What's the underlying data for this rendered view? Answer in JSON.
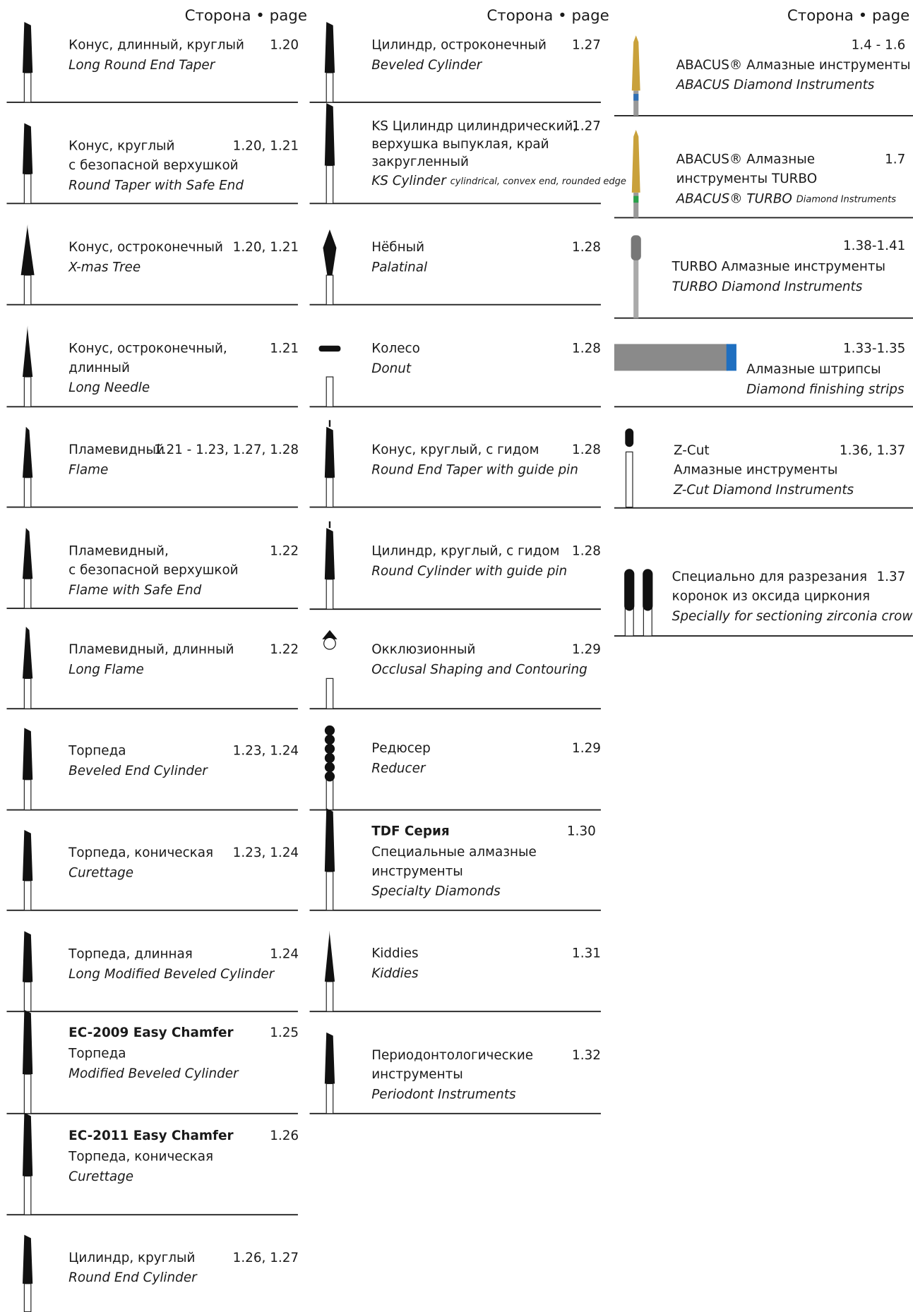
{
  "columns": [
    {
      "header": "Сторона • page",
      "items": [
        {
          "ru": [
            "Конус, длинный, круглый"
          ],
          "en": "Long Round End Taper",
          "page": "1.20"
        },
        {
          "ru": [
            "Конус, круглый",
            "с безопасной верхушкой"
          ],
          "en": "Round Taper with Safe End",
          "page": "1.20, 1.21"
        },
        {
          "ru": [
            "Конус, остроконечный"
          ],
          "en": "X-mas Tree",
          "page": "1.20, 1.21"
        },
        {
          "ru": [
            "Конус, остроконечный,",
            "длинный"
          ],
          "en": "Long Needle",
          "page": "1.21"
        },
        {
          "ru": [
            "Пламевидный"
          ],
          "en": "Flame",
          "page": "1.21 - 1.23, 1.27, 1.28"
        },
        {
          "ru": [
            "Пламевидный,",
            "с безопасной верхушкой"
          ],
          "en": "Flame with Safe End",
          "page": "1.22"
        },
        {
          "ru": [
            "Пламевидный, длинный"
          ],
          "en": "Long Flame",
          "page": "1.22"
        },
        {
          "ru": [
            "Торпеда"
          ],
          "en": "Beveled End Cylinder",
          "page": "1.23, 1.24"
        },
        {
          "ru": [
            "Торпеда, коническая"
          ],
          "en": "Curettage",
          "page": "1.23, 1.24"
        },
        {
          "ru": [
            "Торпеда, длинная"
          ],
          "en": "Long Modified Beveled Cylinder",
          "page": "1.24"
        },
        {
          "title": "EC-2009 Easy Chamfer",
          "ru": [
            "Торпеда"
          ],
          "en": "Modified Beveled Cylinder",
          "page": "1.25"
        },
        {
          "title": "EC-2011 Easy Chamfer",
          "ru": [
            "Торпеда, коническая"
          ],
          "en": "Curettage",
          "page": "1.26"
        },
        {
          "ru": [
            "Цилиндр, круглый"
          ],
          "en": "Round End Cylinder",
          "page": "1.26, 1.27"
        }
      ]
    },
    {
      "header": "Сторона • page",
      "items": [
        {
          "ru": [
            "Цилиндр, остроконечный"
          ],
          "en": "Beveled Cylinder",
          "page": "1.27"
        },
        {
          "ru": [
            "KS Цилиндр цилиндрический,",
            "верхушка выпуклая, край",
            "закругленный"
          ],
          "en": "KS Cylinder",
          "en_note": "cylindrical, convex end, rounded edge",
          "page": "1.27"
        },
        {
          "ru": [
            "Нёбный"
          ],
          "en": "Palatinal",
          "page": "1.28"
        },
        {
          "ru": [
            "Колесо"
          ],
          "en": "Donut",
          "page": "1.28"
        },
        {
          "ru": [
            "Конус, круглый, с гидом"
          ],
          "en": "Round End Taper with guide pin",
          "page": "1.28"
        },
        {
          "ru": [
            "Цилиндр, круглый, с гидом"
          ],
          "en": "Round Cylinder with guide pin",
          "page": "1.28"
        },
        {
          "ru": [
            "Окклюзионный"
          ],
          "en": "Occlusal Shaping and Contouring",
          "page": "1.29"
        },
        {
          "ru": [
            "Редюсер"
          ],
          "en": "Reducer",
          "page": "1.29"
        },
        {
          "title": "TDF Серия",
          "ru": [
            "Специальные алмазные",
            " инструменты"
          ],
          "en": "Specialty Diamonds",
          "page": "1.30"
        },
        {
          "ru": [
            "Kiddies"
          ],
          "en": "Kiddies",
          "page": "1.31"
        },
        {
          "ru": [
            "Периодонтологические",
            "инструменты"
          ],
          "en": "Periodont Instruments",
          "page": "1.32"
        }
      ]
    },
    {
      "header": "Сторона • page",
      "items": [
        {
          "ru": [
            "ABACUS® Алмазные инструменты"
          ],
          "en": "ABACUS Diamond Instruments",
          "page": "1.4 - 1.6"
        },
        {
          "ru": [
            "ABACUS® Алмазные",
            "инструменты TURBO"
          ],
          "en": "ABACUS® TURBO",
          "en_note": "Diamond Instruments",
          "page": "1.7"
        },
        {
          "ru": [
            "TURBO Алмазные инструменты"
          ],
          "en": "TURBO Diamond Instruments",
          "page": "1.38-1.41"
        },
        {
          "ru": [
            "Алмазные штрипсы"
          ],
          "en": "Diamond finishing strips",
          "page": "1.33-1.35"
        },
        {
          "ru": [
            "Z-Cut",
            "Алмазные инструменты"
          ],
          "en": "Z-Cut Diamond Instruments",
          "page": "1.36, 1.37"
        },
        {
          "ru": [
            "Специально для разрезания",
            "коронок из оксида циркония"
          ],
          "en": "Specially for sectioning zirconia crowns",
          "page": "1.37"
        }
      ]
    }
  ]
}
